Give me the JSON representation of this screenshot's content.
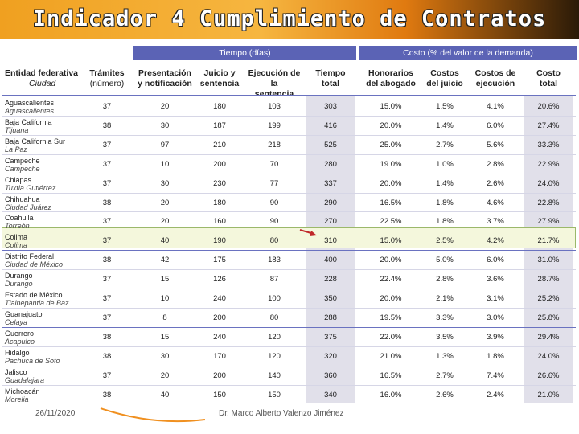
{
  "header": {
    "title": "Indicador 4 Cumplimiento de Contratos"
  },
  "table": {
    "group_headers": [
      "Tiempo (días)",
      "Costo (% del valor de la demanda)"
    ],
    "columns": [
      [
        "Entidad federativa",
        "Ciudad"
      ],
      [
        "Trámites",
        "(número)"
      ],
      [
        "Presentación",
        "y notificación"
      ],
      [
        "Juicio y",
        "sentencia"
      ],
      [
        "Ejecución de la",
        "sentencia"
      ],
      [
        "Tiempo",
        "total"
      ],
      [
        "Honorarios",
        "del abogado"
      ],
      [
        "Costos",
        "del juicio"
      ],
      [
        "Costos de",
        "ejecución"
      ],
      [
        "Costo",
        "total"
      ]
    ],
    "rows": [
      [
        "Aguascalientes",
        "Aguascalientes",
        "37",
        "20",
        "180",
        "103",
        "303",
        "15.0%",
        "1.5%",
        "4.1%",
        "20.6%"
      ],
      [
        "Baja California",
        "Tijuana",
        "38",
        "30",
        "187",
        "199",
        "416",
        "20.0%",
        "1.4%",
        "6.0%",
        "27.4%"
      ],
      [
        "Baja California Sur",
        "La Paz",
        "37",
        "97",
        "210",
        "218",
        "525",
        "25.0%",
        "2.7%",
        "5.6%",
        "33.3%"
      ],
      [
        "Campeche",
        "Campeche",
        "37",
        "10",
        "200",
        "70",
        "280",
        "19.0%",
        "1.0%",
        "2.8%",
        "22.9%"
      ],
      [
        "Chiapas",
        "Tuxtla Gutiérrez",
        "37",
        "30",
        "230",
        "77",
        "337",
        "20.0%",
        "1.4%",
        "2.6%",
        "24.0%"
      ],
      [
        "Chihuahua",
        "Ciudad Juárez",
        "38",
        "20",
        "180",
        "90",
        "290",
        "16.5%",
        "1.8%",
        "4.6%",
        "22.8%"
      ],
      [
        "Coahuila",
        "Torreón",
        "37",
        "20",
        "160",
        "90",
        "270",
        "22.5%",
        "1.8%",
        "3.7%",
        "27.9%"
      ],
      [
        "Colima",
        "Colima",
        "37",
        "40",
        "190",
        "80",
        "310",
        "15.0%",
        "2.5%",
        "4.2%",
        "21.7%"
      ],
      [
        "Distrito Federal",
        "Ciudad de México",
        "38",
        "42",
        "175",
        "183",
        "400",
        "20.0%",
        "5.0%",
        "6.0%",
        "31.0%"
      ],
      [
        "Durango",
        "Durango",
        "37",
        "15",
        "126",
        "87",
        "228",
        "22.4%",
        "2.8%",
        "3.6%",
        "28.7%"
      ],
      [
        "Estado de México",
        "Tlalnepantla de Baz",
        "37",
        "10",
        "240",
        "100",
        "350",
        "20.0%",
        "2.1%",
        "3.1%",
        "25.2%"
      ],
      [
        "Guanajuato",
        "Celaya",
        "37",
        "8",
        "200",
        "80",
        "288",
        "19.5%",
        "3.3%",
        "3.0%",
        "25.8%"
      ],
      [
        "Guerrero",
        "Acapulco",
        "38",
        "15",
        "240",
        "120",
        "375",
        "22.0%",
        "3.5%",
        "3.9%",
        "29.4%"
      ],
      [
        "Hidalgo",
        "Pachuca de Soto",
        "38",
        "30",
        "170",
        "120",
        "320",
        "21.0%",
        "1.3%",
        "1.8%",
        "24.0%"
      ],
      [
        "Jalisco",
        "Guadalajara",
        "37",
        "20",
        "200",
        "140",
        "360",
        "16.5%",
        "2.7%",
        "7.4%",
        "26.6%"
      ],
      [
        "Michoacán",
        "Morelia",
        "38",
        "40",
        "150",
        "150",
        "340",
        "16.0%",
        "2.6%",
        "2.4%",
        "21.0%"
      ]
    ]
  },
  "footer": {
    "date": "26/11/2020",
    "author": "Dr. Marco Alberto Valenzo Jiménez"
  }
}
